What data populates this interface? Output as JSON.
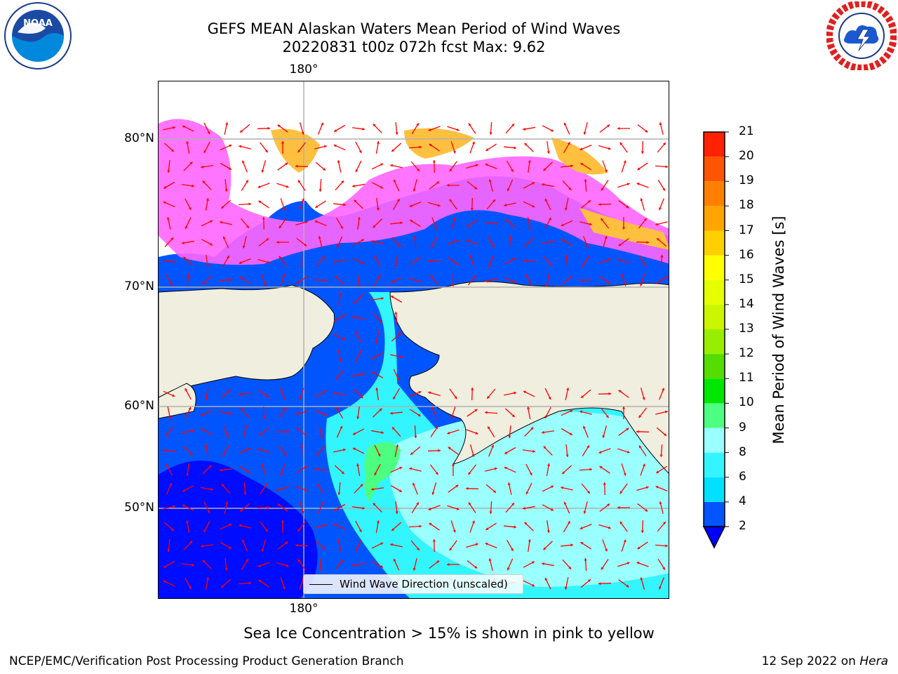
{
  "header": {
    "title_line1": "GEFS MEAN Alaskan Waters Mean Period of Wind Waves",
    "title_line2": "20220831 t00z 072h fcst   Max: 9.62"
  },
  "logos": {
    "left": {
      "name": "NOAA",
      "text": "NOAA",
      "ring_text": "NATIONAL OCEANIC AND ATMOSPHERIC ADMINISTRATION · U.S. DEPARTMENT OF COMMERCE"
    },
    "right": {
      "name": "National Weather Service",
      "ring_text": "NATIONAL WEATHER SERVICE"
    }
  },
  "map": {
    "top_lon_label": "180°",
    "bottom_lon_label": "180°",
    "lat_labels": [
      "80°N",
      "70°N",
      "60°N",
      "50°N"
    ],
    "land_color": "#efeedf",
    "grid_color": "#b0b0b0",
    "arrow_color": "#ff0000"
  },
  "legend": {
    "label": "Wind Wave Direction (unscaled)"
  },
  "colorbar": {
    "title": "Mean Period of Wind Waves [s]",
    "ticks": [
      "2",
      "4",
      "6",
      "8",
      "9",
      "10",
      "11",
      "12",
      "13",
      "14",
      "15",
      "16",
      "17",
      "18",
      "19",
      "20",
      "21"
    ],
    "colors": [
      "#0055ff",
      "#00e0ff",
      "#33f5ff",
      "#99ffff",
      "#4dff80",
      "#00e600",
      "#55dd00",
      "#99ee00",
      "#ccf500",
      "#e5ff00",
      "#ffff00",
      "#ffd000",
      "#ffa500",
      "#ff8000",
      "#ff5500",
      "#ff2200"
    ],
    "extend_color": "#0000ff"
  },
  "caption": "Sea Ice Concentration > 15% is shown in pink to yellow",
  "footer": {
    "left": "NCEP/EMC/Verification Post Processing Product Generation Branch",
    "right_date": "12 Sep 2022 on ",
    "right_host": "Hera"
  }
}
